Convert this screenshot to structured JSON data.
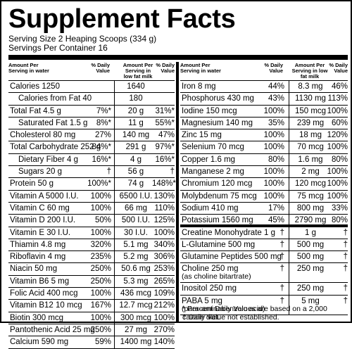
{
  "title": "Supplement Facts",
  "serving_size": "Serving Size 2 Heaping Scoops (334 g)",
  "servings_per_container": "Servings Per Container 16",
  "left_headers": {
    "in_water": "Amount Per Serving in water",
    "dv1": "% Daily Value",
    "in_milk": "Amount Per Serving in low fat milk",
    "dv2": "% Daily Value"
  },
  "right_headers": {
    "in_water": "Amount Per Serving in water",
    "dv1": "% Daily Value",
    "in_milk": "Amount Per Serving in low fat milk",
    "dv2": "% Daily Value"
  },
  "left_rows": [
    {
      "name": "Calories 1250",
      "dv": "",
      "milk": "1640",
      "dv2": ""
    },
    {
      "name": "Calories from Fat 40",
      "dv": "",
      "milk": "180",
      "dv2": ""
    },
    {
      "name": "Total Fat 4.5 g",
      "dv": "7%*",
      "milk": "20 g",
      "dv2": "31%*"
    },
    {
      "name": "Saturated Fat 1.5 g",
      "dv": "8%*",
      "milk": "11 g",
      "dv2": "55%*"
    },
    {
      "name": "Cholesterol 80 mg",
      "dv": "27%",
      "milk": "140 mg",
      "dv2": "47%"
    },
    {
      "name": "Total Carbohydrate 252 g",
      "dv": "84%*",
      "milk": "291 g",
      "dv2": "97%*"
    },
    {
      "name": "Dietary Fiber 4 g",
      "dv": "16%*",
      "milk": "4 g",
      "dv2": "16%*"
    },
    {
      "name": "Sugars 20 g",
      "dv": "†",
      "milk": "56 g",
      "dv2": "†"
    },
    {
      "name": "Protein 50 g",
      "dv": "100%*",
      "milk": "74 g",
      "dv2": "148%*"
    },
    {
      "name": "Vitamin A 5000 I.U.",
      "dv": "100%",
      "milk": "6500 I.U.",
      "dv2": "130%"
    },
    {
      "name": "Vitamin C 60 mg",
      "dv": "100%",
      "milk": "66 mg",
      "dv2": "110%"
    },
    {
      "name": "Vitamin D 200 I.U.",
      "dv": "50%",
      "milk": "500 I.U.",
      "dv2": "125%"
    },
    {
      "name": "Vitamin E 30 I.U.",
      "dv": "100%",
      "milk": "30 I.U.",
      "dv2": "100%"
    },
    {
      "name": "Thiamin 4.8 mg",
      "dv": "320%",
      "milk": "5.1 mg",
      "dv2": "340%"
    },
    {
      "name": "Riboflavin 4 mg",
      "dv": "235%",
      "milk": "5.2 mg",
      "dv2": "306%"
    },
    {
      "name": "Niacin 50 mg",
      "dv": "250%",
      "milk": "50.6 mg",
      "dv2": "253%"
    },
    {
      "name": "Vitamin B6 5 mg",
      "dv": "250%",
      "milk": "5.3 mg",
      "dv2": "265%"
    },
    {
      "name": "Folic Acid 400 mcg",
      "dv": "100%",
      "milk": "436 mcg",
      "dv2": "109%"
    },
    {
      "name": "Vitamin B12 10 mcg",
      "dv": "167%",
      "milk": "12.7 mcg",
      "dv2": "212%"
    },
    {
      "name": "Biotin 300 mcg",
      "dv": "100%",
      "milk": "300 mcg",
      "dv2": "100%"
    },
    {
      "name": "Pantothenic Acid 25 mg",
      "dv": "250%",
      "milk": "27 mg",
      "dv2": "270%"
    },
    {
      "name": "Calcium 590 mg",
      "dv": "59%",
      "milk": "1400 mg",
      "dv2": "140%"
    }
  ],
  "right_rows": [
    {
      "name": "Iron 8 mg",
      "dv": "44%",
      "milk": "8.3 mg",
      "dv2": "46%"
    },
    {
      "name": "Phosphorus 430 mg",
      "dv": "43%",
      "milk": "1130 mg",
      "dv2": "113%"
    },
    {
      "name": "Iodine 150 mcg",
      "dv": "100%",
      "milk": "150 mcg",
      "dv2": "100%"
    },
    {
      "name": "Magnesium 140 mg",
      "dv": "35%",
      "milk": "239 mg",
      "dv2": "60%"
    },
    {
      "name": "Zinc 15 mg",
      "dv": "100%",
      "milk": "18 mg",
      "dv2": "120%"
    },
    {
      "name": "Selenium 70 mcg",
      "dv": "100%",
      "milk": "70 mcg",
      "dv2": "100%"
    },
    {
      "name": "Copper 1.6 mg",
      "dv": "80%",
      "milk": "1.6 mg",
      "dv2": "80%"
    },
    {
      "name": "Manganese 2 mg",
      "dv": "100%",
      "milk": "2 mg",
      "dv2": "100%"
    },
    {
      "name": "Chromium 120 mcg",
      "dv": "100%",
      "milk": "120 mcg",
      "dv2": "100%"
    },
    {
      "name": "Molybdenum 75 mcg",
      "dv": "100%",
      "milk": "75 mcg",
      "dv2": "100%"
    },
    {
      "name": "Sodium 410 mg",
      "dv": "17%",
      "milk": "800 mg",
      "dv2": "33%"
    },
    {
      "name": "Potassium 1560 mg",
      "dv": "45%",
      "milk": "2790 mg",
      "dv2": "80%"
    }
  ],
  "dagger_rows": [
    {
      "name": "Creatine Monohydrate 1 g",
      "sub": "",
      "dv": "†",
      "milk": "1 g",
      "dv2": "†"
    },
    {
      "name": "L-Glutamine 500 mg",
      "sub": "",
      "dv": "†",
      "milk": "500 mg",
      "dv2": "†"
    },
    {
      "name": "Glutamine Peptides 500 mg",
      "sub": "",
      "dv": "†",
      "milk": "500 mg",
      "dv2": "†"
    },
    {
      "name": "Choline 250 mg",
      "sub": "(as choline bitartrate)",
      "dv": "†",
      "milk": "250 mg",
      "dv2": "†"
    },
    {
      "name": "Inositol 250 mg",
      "sub": "",
      "dv": "†",
      "milk": "250 mg",
      "dv2": "†"
    },
    {
      "name": "PABA 5 mg",
      "sub": "(para-aminobenzoic acid)",
      "dv": "†",
      "milk": "5 mg",
      "dv2": "†"
    }
  ],
  "footnote1": "* Percent Daily Values are based on a 2,000 calorie diet.",
  "footnote2": "† Daily Value not established."
}
